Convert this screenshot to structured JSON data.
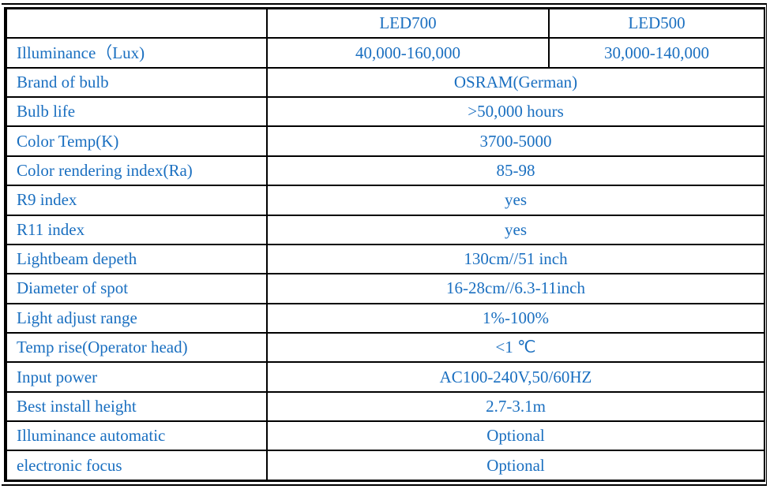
{
  "header": {
    "blank": "",
    "col1": "LED700",
    "col2": "LED500"
  },
  "illuminance": {
    "label": "Illuminance（Lux)",
    "led700": "40,000-160,000",
    "led500": "30,000-140,000"
  },
  "rows": [
    {
      "label": "Brand of bulb",
      "value": "OSRAM(German)"
    },
    {
      "label": "Bulb life",
      "value": ">50,000 hours"
    },
    {
      "label": "Color Temp(K)",
      "value": "3700-5000"
    },
    {
      "label": "Color rendering index(Ra)",
      "value": "85-98"
    },
    {
      "label": "R9 index",
      "value": "yes"
    },
    {
      "label": "R11 index",
      "value": "yes"
    },
    {
      "label": "Lightbeam depeth",
      "value": "130cm//51 inch"
    },
    {
      "label": "Diameter of spot",
      "value": "16-28cm//6.3-11inch"
    },
    {
      "label": "Light adjust range",
      "value": "1%-100%"
    },
    {
      "label": "Temp rise(Operator head)",
      "value": "<1 ℃"
    },
    {
      "label": "Input power",
      "value": "AC100-240V,50/60HZ"
    },
    {
      "label": "Best install height",
      "value": "2.7-3.1m"
    },
    {
      "label": "Illuminance automatic",
      "value": "Optional"
    },
    {
      "label": "electronic focus",
      "value": "Optional"
    }
  ],
  "colors": {
    "text": "#1a6fc0",
    "border": "#000000"
  }
}
